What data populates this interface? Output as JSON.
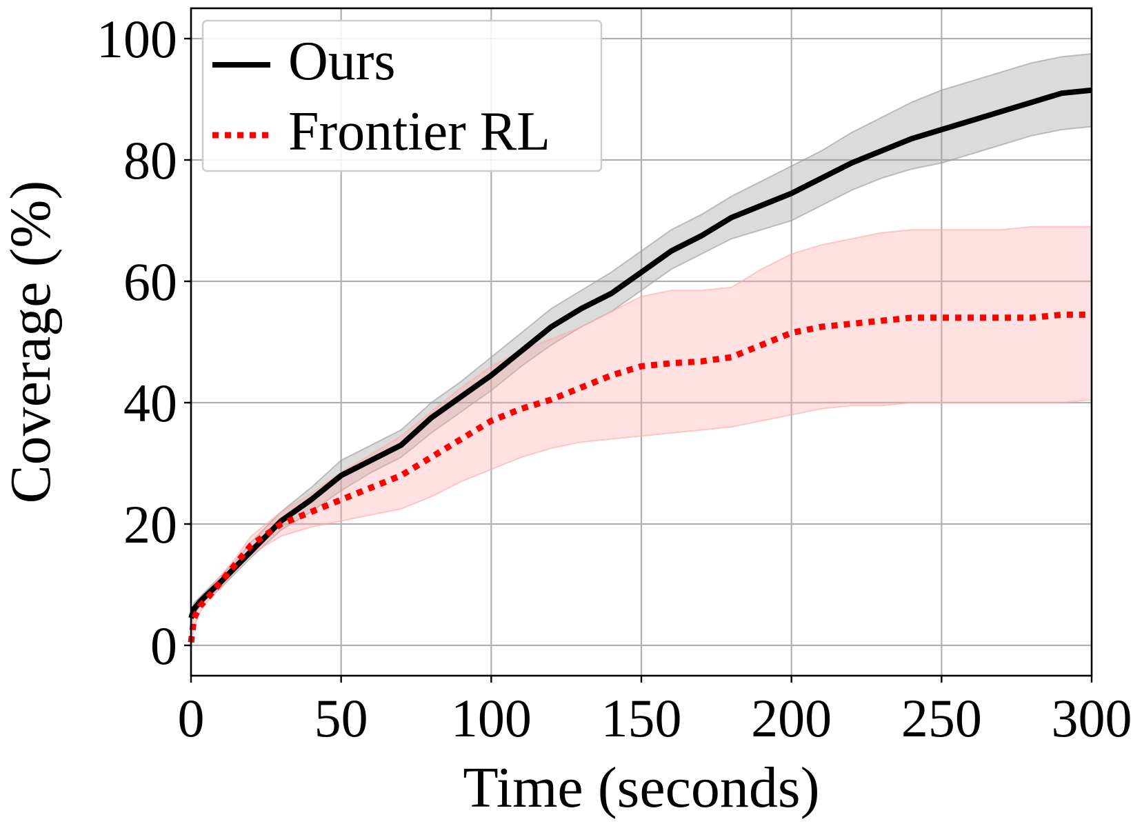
{
  "chart_data": {
    "type": "line",
    "title": "",
    "xlabel": "Time (seconds)",
    "ylabel": "Coverage (%)",
    "xlim": [
      0,
      300
    ],
    "ylim": [
      -5,
      105
    ],
    "xticks": [
      0,
      50,
      100,
      150,
      200,
      250,
      300
    ],
    "yticks": [
      0,
      20,
      40,
      60,
      80,
      100
    ],
    "grid": true,
    "legend_position": "top-left",
    "series": [
      {
        "name": "Ours",
        "color": "#000000",
        "band_color": "#999999",
        "line_style": "solid",
        "x": [
          0,
          1,
          3,
          5,
          10,
          15,
          20,
          30,
          40,
          50,
          60,
          70,
          80,
          90,
          100,
          110,
          120,
          130,
          140,
          150,
          160,
          170,
          180,
          190,
          200,
          210,
          220,
          230,
          240,
          250,
          260,
          270,
          280,
          290,
          300
        ],
        "y": [
          4.5,
          6.0,
          7.2,
          8.2,
          10.5,
          13.0,
          15.5,
          20.5,
          24.0,
          28.0,
          30.5,
          33.0,
          37.5,
          41.0,
          44.5,
          48.5,
          52.5,
          55.5,
          58.0,
          61.5,
          65.0,
          67.5,
          70.5,
          72.5,
          74.5,
          77.0,
          79.5,
          81.5,
          83.5,
          85.0,
          86.5,
          88.0,
          89.5,
          91.0,
          91.5
        ],
        "lower": [
          3.5,
          5.0,
          6.5,
          7.5,
          9.5,
          12.0,
          14.5,
          19.0,
          22.0,
          25.5,
          28.5,
          31.0,
          35.0,
          38.5,
          42.0,
          46.0,
          49.5,
          52.5,
          55.0,
          58.5,
          62.0,
          64.5,
          67.0,
          68.5,
          70.0,
          72.5,
          75.0,
          77.0,
          78.5,
          79.5,
          81.0,
          82.5,
          84.0,
          85.0,
          85.5
        ],
        "upper": [
          5.5,
          7.0,
          8.0,
          9.0,
          11.5,
          14.0,
          17.0,
          22.0,
          26.0,
          30.5,
          33.0,
          35.5,
          40.0,
          43.5,
          47.5,
          51.5,
          55.5,
          58.5,
          61.5,
          65.0,
          68.5,
          71.0,
          74.0,
          76.5,
          79.0,
          81.5,
          84.5,
          87.0,
          89.5,
          91.5,
          93.0,
          94.5,
          96.0,
          97.0,
          97.5
        ]
      },
      {
        "name": "Frontier RL",
        "color": "#ff0000",
        "band_color": "#ffaaaa",
        "line_style": "dotted",
        "x": [
          0,
          1,
          3,
          5,
          10,
          15,
          20,
          30,
          40,
          50,
          60,
          70,
          80,
          90,
          100,
          110,
          120,
          130,
          140,
          150,
          160,
          170,
          180,
          190,
          200,
          210,
          220,
          230,
          240,
          250,
          260,
          270,
          280,
          290,
          300
        ],
        "y": [
          0.5,
          4.5,
          6.5,
          7.5,
          10.5,
          13.5,
          16.5,
          20.0,
          22.0,
          24.0,
          26.0,
          28.0,
          31.0,
          34.0,
          37.0,
          39.0,
          40.5,
          42.5,
          44.5,
          46.0,
          46.5,
          46.8,
          47.5,
          49.5,
          51.5,
          52.5,
          53.0,
          53.5,
          54.0,
          54.0,
          54.0,
          54.0,
          54.0,
          54.5,
          54.5
        ],
        "lower": [
          0.0,
          3.0,
          5.5,
          7.0,
          9.5,
          12.5,
          15.0,
          18.0,
          19.5,
          20.5,
          21.5,
          22.5,
          24.5,
          27.0,
          29.0,
          31.0,
          32.5,
          33.5,
          34.0,
          34.5,
          35.0,
          35.5,
          36.0,
          37.0,
          38.0,
          39.0,
          39.5,
          39.5,
          40.0,
          40.0,
          40.0,
          40.0,
          40.0,
          40.0,
          40.5
        ],
        "upper": [
          1.0,
          5.5,
          7.5,
          8.5,
          11.5,
          14.5,
          18.0,
          22.0,
          25.0,
          28.5,
          31.5,
          34.5,
          38.5,
          42.5,
          46.0,
          48.5,
          50.5,
          52.5,
          55.0,
          57.5,
          58.5,
          58.5,
          59.0,
          62.0,
          64.5,
          66.0,
          67.0,
          68.0,
          68.5,
          68.5,
          68.5,
          68.5,
          69.0,
          69.0,
          69.0
        ]
      }
    ]
  }
}
